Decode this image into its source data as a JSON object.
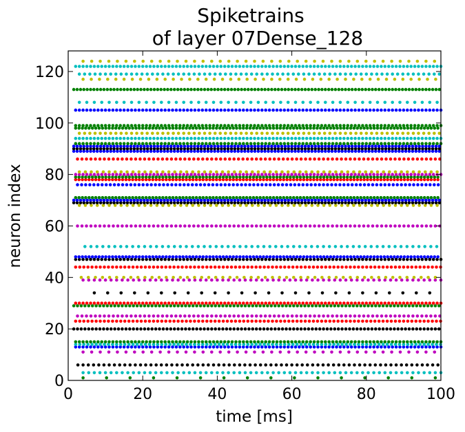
{
  "chart_data": {
    "type": "scatter",
    "title": "Spiketrains",
    "subtitle": "of layer 07Dense_128",
    "xlabel": "time [ms]",
    "ylabel": "neuron index",
    "xlim": [
      0,
      100
    ],
    "ylim": [
      0,
      128
    ],
    "xticks": [
      "0",
      "20",
      "40",
      "60",
      "80",
      "100"
    ],
    "yticks": [
      "0",
      "20",
      "40",
      "60",
      "80",
      "100",
      "120"
    ],
    "grid": false,
    "legend": "none",
    "colors": [
      "#0000ff",
      "#008000",
      "#ff0000",
      "#00bfbf",
      "#bf00bf",
      "#bfbf00",
      "#000000"
    ],
    "spike_trains": [
      {
        "neuron": 1,
        "color": "#008000",
        "start": 4,
        "period": 6.3
      },
      {
        "neuron": 3,
        "color": "#00bfbf",
        "start": 4,
        "period": 1.5
      },
      {
        "neuron": 6,
        "color": "#000000",
        "start": 2.6,
        "period": 1.4
      },
      {
        "neuron": 11,
        "color": "#bf00bf",
        "start": 4,
        "period": 2.3
      },
      {
        "neuron": 13,
        "color": "#0000ff",
        "start": 2,
        "period": 1.0
      },
      {
        "neuron": 14,
        "color": "#00bfbf",
        "start": 2,
        "period": 1.1
      },
      {
        "neuron": 15,
        "color": "#008000",
        "start": 2,
        "period": 1.0
      },
      {
        "neuron": 20,
        "color": "#000000",
        "start": 1.5,
        "period": 1.0
      },
      {
        "neuron": 23,
        "color": "#ff0000",
        "start": 2,
        "period": 1.1
      },
      {
        "neuron": 25,
        "color": "#bf00bf",
        "start": 2.5,
        "period": 1.2
      },
      {
        "neuron": 29,
        "color": "#008000",
        "start": 1.5,
        "period": 1.0
      },
      {
        "neuron": 30,
        "color": "#ff0000",
        "start": 2,
        "period": 1.0
      },
      {
        "neuron": 34,
        "color": "#000000",
        "start": 7,
        "period": 3.6
      },
      {
        "neuron": 39,
        "color": "#bf00bf",
        "start": 4,
        "period": 1.5
      },
      {
        "neuron": 40,
        "color": "#bfbf00",
        "start": 3.5,
        "period": 1.9
      },
      {
        "neuron": 44,
        "color": "#ff0000",
        "start": 2,
        "period": 1.1
      },
      {
        "neuron": 47,
        "color": "#000000",
        "start": 2,
        "period": 1.0
      },
      {
        "neuron": 48,
        "color": "#0000ff",
        "start": 2,
        "period": 0.9
      },
      {
        "neuron": 52,
        "color": "#00bfbf",
        "start": 4.5,
        "period": 1.6
      },
      {
        "neuron": 60,
        "color": "#bf00bf",
        "start": 2.5,
        "period": 1.2
      },
      {
        "neuron": 68,
        "color": "#bfbf00",
        "start": 3,
        "period": 1.6
      },
      {
        "neuron": 69,
        "color": "#000000",
        "start": 1.5,
        "period": 0.9
      },
      {
        "neuron": 70,
        "color": "#0000ff",
        "start": 1.5,
        "period": 0.9
      },
      {
        "neuron": 71,
        "color": "#008000",
        "start": 2,
        "period": 0.9
      },
      {
        "neuron": 76,
        "color": "#0000ff",
        "start": 2.5,
        "period": 1.1
      },
      {
        "neuron": 78,
        "color": "#ff0000",
        "start": 2,
        "period": 0.9
      },
      {
        "neuron": 79,
        "color": "#008000",
        "start": 2,
        "period": 0.9
      },
      {
        "neuron": 80,
        "color": "#bf00bf",
        "start": 2,
        "period": 1.0
      },
      {
        "neuron": 81,
        "color": "#bfbf00",
        "start": 3,
        "period": 1.6
      },
      {
        "neuron": 86,
        "color": "#ff0000",
        "start": 2.5,
        "period": 1.2
      },
      {
        "neuron": 89,
        "color": "#0000ff",
        "start": 1.5,
        "period": 0.9
      },
      {
        "neuron": 90,
        "color": "#000000",
        "start": 1.5,
        "period": 0.9
      },
      {
        "neuron": 91,
        "color": "#0000ff",
        "start": 1.5,
        "period": 0.9
      },
      {
        "neuron": 92,
        "color": "#008000",
        "start": 2,
        "period": 1.0
      },
      {
        "neuron": 94,
        "color": "#00bfbf",
        "start": 2,
        "period": 1.0
      },
      {
        "neuron": 96,
        "color": "#bfbf00",
        "start": 3,
        "period": 1.4
      },
      {
        "neuron": 98,
        "color": "#008000",
        "start": 2,
        "period": 0.9
      },
      {
        "neuron": 99,
        "color": "#008000",
        "start": 2,
        "period": 1.0
      },
      {
        "neuron": 105,
        "color": "#0000ff",
        "start": 2,
        "period": 1.0
      },
      {
        "neuron": 108,
        "color": "#00bfbf",
        "start": 3,
        "period": 2.0
      },
      {
        "neuron": 113,
        "color": "#008000",
        "start": 1.5,
        "period": 0.9
      },
      {
        "neuron": 117,
        "color": "#bfbf00",
        "start": 4,
        "period": 2.2
      },
      {
        "neuron": 119,
        "color": "#00bfbf",
        "start": 3,
        "period": 1.4
      },
      {
        "neuron": 122,
        "color": "#00bfbf",
        "start": 2,
        "period": 1.0
      },
      {
        "neuron": 124,
        "color": "#bfbf00",
        "start": 4,
        "period": 2.3
      }
    ]
  }
}
